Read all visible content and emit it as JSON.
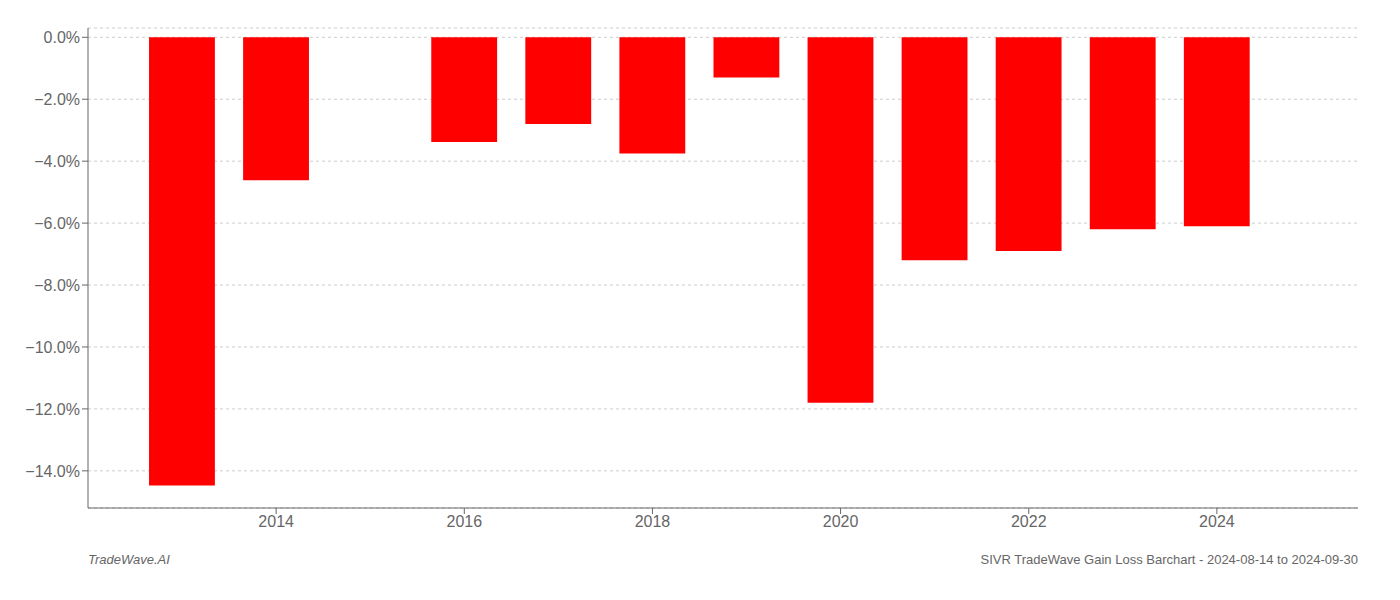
{
  "chart_data": {
    "type": "bar",
    "x": [
      2013,
      2014,
      2016,
      2017,
      2018,
      2019,
      2020,
      2021,
      2022,
      2023,
      2024
    ],
    "values": [
      -14.47,
      -4.62,
      -3.38,
      -2.8,
      -3.75,
      -1.3,
      -11.8,
      -7.2,
      -6.9,
      -6.2,
      -6.1
    ],
    "color": "#ff0000",
    "xlim": [
      2012.0,
      2025.5
    ],
    "xticks": [
      2014,
      2016,
      2018,
      2020,
      2022,
      2024
    ],
    "ylim": [
      -15.2,
      0.3
    ],
    "yticks": [
      {
        "value": 0.0,
        "label": "0.0%"
      },
      {
        "value": -2.0,
        "label": "−2.0%"
      },
      {
        "value": -4.0,
        "label": "−4.0%"
      },
      {
        "value": -6.0,
        "label": "−6.0%"
      },
      {
        "value": -8.0,
        "label": "−8.0%"
      },
      {
        "value": -10.0,
        "label": "−10.0%"
      },
      {
        "value": -12.0,
        "label": "−12.0%"
      },
      {
        "value": -14.0,
        "label": "−14.0%"
      }
    ],
    "grid": true,
    "annotations": [
      {
        "text": "TradeWave.AI"
      },
      {
        "text": "SIVR TradeWave Gain Loss Barchart - 2024-08-14 to 2024-09-30"
      }
    ]
  }
}
